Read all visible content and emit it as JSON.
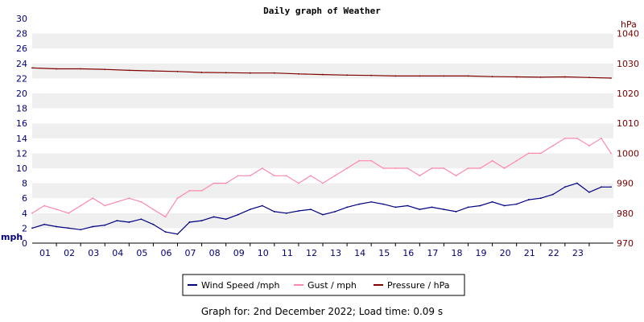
{
  "chart_data": {
    "type": "line",
    "title": "Daily graph of Weather",
    "x_ticks": [
      "01",
      "02",
      "03",
      "04",
      "05",
      "06",
      "07",
      "08",
      "09",
      "10",
      "11",
      "12",
      "13",
      "14",
      "15",
      "16",
      "17",
      "18",
      "19",
      "20",
      "21",
      "22",
      "23"
    ],
    "xlim": [
      0,
      24
    ],
    "y_left": {
      "unit": "mph",
      "lim": [
        0,
        30
      ],
      "ticks": [
        0,
        2,
        4,
        6,
        8,
        10,
        12,
        14,
        16,
        18,
        20,
        22,
        24,
        26,
        28,
        30
      ]
    },
    "y_right": {
      "unit": "hPa",
      "lim": [
        970,
        1045
      ],
      "ticks": [
        970,
        980,
        990,
        1000,
        1010,
        1020,
        1030,
        1040
      ]
    },
    "grid": "horizontal bands",
    "legend_position": "bottom",
    "legend": [
      "Wind Speed /mph",
      "Gust / mph",
      "Pressure / hPa"
    ],
    "series": [
      {
        "name": "Wind Speed /mph",
        "axis": "left",
        "color": "#000080",
        "x": [
          0,
          0.5,
          1,
          1.5,
          2,
          2.5,
          3,
          3.5,
          4,
          4.5,
          5,
          5.5,
          6,
          6.5,
          7,
          7.5,
          8,
          8.5,
          9,
          9.5,
          10,
          10.5,
          11,
          11.5,
          12,
          12.5,
          13,
          13.5,
          14,
          14.5,
          15,
          15.5,
          16,
          16.5,
          17,
          17.5,
          18,
          18.5,
          19,
          19.5,
          20,
          20.5,
          21,
          21.5,
          22,
          22.5,
          23,
          23.5,
          23.9
        ],
        "values": [
          2,
          2.5,
          2.2,
          2,
          1.8,
          2.2,
          2.4,
          3,
          2.8,
          3.2,
          2.5,
          1.5,
          1.2,
          2.8,
          3,
          3.5,
          3.2,
          3.8,
          4.5,
          5,
          4.2,
          4,
          4.3,
          4.5,
          3.8,
          4.2,
          4.8,
          5.2,
          5.5,
          5.2,
          4.8,
          5,
          4.5,
          4.8,
          4.5,
          4.2,
          4.8,
          5,
          5.5,
          5,
          5.2,
          5.8,
          6,
          6.5,
          7.5,
          8,
          6.8,
          7.5,
          7.5
        ]
      },
      {
        "name": "Gust / mph",
        "axis": "left",
        "color": "#ff88aa",
        "x": [
          0,
          0.5,
          1,
          1.5,
          2,
          2.5,
          3,
          3.5,
          4,
          4.5,
          5,
          5.5,
          6,
          6.5,
          7,
          7.5,
          8,
          8.5,
          9,
          9.5,
          10,
          10.5,
          11,
          11.5,
          12,
          12.5,
          13,
          13.5,
          14,
          14.5,
          15,
          15.5,
          16,
          16.5,
          17,
          17.5,
          18,
          18.5,
          19,
          19.5,
          20,
          20.5,
          21,
          21.5,
          22,
          22.5,
          23,
          23.5,
          23.9
        ],
        "values": [
          4,
          5,
          4.5,
          4,
          5,
          6,
          5,
          5.5,
          6,
          5.5,
          4.5,
          3.5,
          6,
          7,
          7,
          8,
          8,
          9,
          9,
          10,
          9,
          9,
          8,
          9,
          8,
          9,
          10,
          11,
          11,
          10,
          10,
          10,
          9,
          10,
          10,
          9,
          10,
          10,
          11,
          10,
          11,
          12,
          12,
          13,
          14,
          14,
          13,
          14,
          12
        ]
      },
      {
        "name": "Pressure / hPa",
        "axis": "right",
        "color": "#800000",
        "x": [
          0,
          1,
          2,
          3,
          4,
          5,
          6,
          7,
          8,
          9,
          10,
          11,
          12,
          13,
          14,
          15,
          16,
          17,
          18,
          19,
          20,
          21,
          22,
          23,
          23.9
        ],
        "values": [
          1028.5,
          1028.2,
          1028.2,
          1028,
          1027.7,
          1027.5,
          1027.3,
          1027,
          1026.9,
          1026.8,
          1026.8,
          1026.5,
          1026.3,
          1026.1,
          1026,
          1025.8,
          1025.8,
          1025.8,
          1025.8,
          1025.6,
          1025.5,
          1025.4,
          1025.5,
          1025.3,
          1025.1
        ]
      }
    ]
  },
  "footer": {
    "text": "Graph for: 2nd December 2022; Load time: 0.09 s"
  }
}
